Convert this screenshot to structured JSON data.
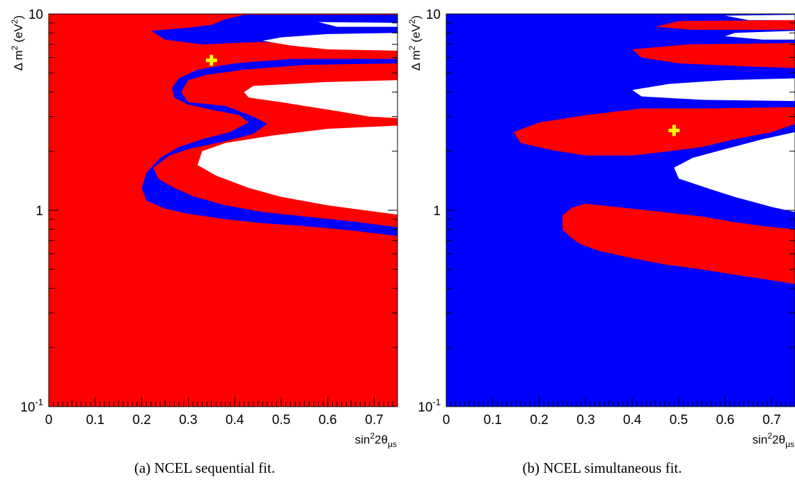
{
  "colors": {
    "red": "#ff0000",
    "blue": "#0000ff",
    "white": "#ffffff",
    "marker": "#ffff00",
    "axis": "#000000"
  },
  "chart_data": [
    {
      "type": "heatmap",
      "caption": "(a) NCEL sequential fit.",
      "xlabel_main": "sin",
      "xlabel_sup": "2",
      "xlabel_rest": "2θ",
      "xlabel_sub": "μs",
      "ylabel_main": "Δ m",
      "ylabel_sup": "2",
      "ylabel_unit_open": " (eV",
      "ylabel_unit_sup": "2",
      "ylabel_unit_close": ")",
      "xlim": [
        0,
        0.75
      ],
      "ylim": [
        0.1,
        10
      ],
      "y_scale": "log",
      "x_ticks": [
        "0",
        "0.1",
        "0.2",
        "0.3",
        "0.4",
        "0.5",
        "0.6",
        "0.7"
      ],
      "y_ticks": [
        {
          "base": "10",
          "exp": "-1",
          "value": 0.1
        },
        {
          "base": "1",
          "exp": "",
          "value": 1
        },
        {
          "base": "10",
          "exp": "",
          "value": 10
        }
      ],
      "background": "red",
      "regions": [
        {
          "color": "blue",
          "boundary": [
            [
              0.75,
              9.9
            ],
            [
              0.42,
              9.9
            ],
            [
              0.38,
              9.4
            ],
            [
              0.35,
              8.8
            ],
            [
              0.3,
              8.5
            ],
            [
              0.22,
              8.2
            ],
            [
              0.25,
              7.4
            ],
            [
              0.33,
              7.0
            ],
            [
              0.45,
              7.2
            ],
            [
              0.6,
              7.0
            ],
            [
              0.75,
              7.0
            ]
          ]
        },
        {
          "color": "blue",
          "boundary": [
            [
              0.75,
              5.6
            ],
            [
              0.55,
              5.5
            ],
            [
              0.42,
              5.2
            ],
            [
              0.34,
              4.9
            ],
            [
              0.3,
              4.6
            ],
            [
              0.285,
              4.0
            ],
            [
              0.3,
              3.55
            ],
            [
              0.38,
              3.4
            ],
            [
              0.44,
              3.0
            ],
            [
              0.47,
              2.75
            ],
            [
              0.44,
              2.45
            ],
            [
              0.38,
              2.25
            ],
            [
              0.3,
              2.05
            ],
            [
              0.26,
              1.9
            ],
            [
              0.225,
              1.65
            ],
            [
              0.235,
              1.45
            ],
            [
              0.27,
              1.3
            ],
            [
              0.31,
              1.18
            ],
            [
              0.38,
              1.06
            ],
            [
              0.46,
              0.98
            ],
            [
              0.55,
              0.93
            ],
            [
              0.65,
              0.88
            ],
            [
              0.75,
              0.82
            ],
            [
              0.75,
              0.74
            ],
            [
              0.65,
              0.79
            ],
            [
              0.55,
              0.83
            ],
            [
              0.46,
              0.86
            ],
            [
              0.38,
              0.9
            ],
            [
              0.3,
              0.96
            ],
            [
              0.25,
              1.02
            ],
            [
              0.21,
              1.12
            ],
            [
              0.2,
              1.3
            ],
            [
              0.21,
              1.55
            ],
            [
              0.24,
              1.85
            ],
            [
              0.28,
              2.1
            ],
            [
              0.33,
              2.3
            ],
            [
              0.39,
              2.5
            ],
            [
              0.43,
              2.8
            ],
            [
              0.41,
              3.05
            ],
            [
              0.35,
              3.25
            ],
            [
              0.3,
              3.45
            ],
            [
              0.27,
              3.75
            ],
            [
              0.265,
              4.2
            ],
            [
              0.28,
              4.7
            ],
            [
              0.32,
              5.2
            ],
            [
              0.4,
              5.6
            ],
            [
              0.52,
              5.9
            ],
            [
              0.75,
              5.9
            ]
          ]
        },
        {
          "color": "white",
          "boundary": [
            [
              0.75,
              9.0
            ],
            [
              0.58,
              9.1
            ],
            [
              0.62,
              8.6
            ],
            [
              0.75,
              8.6
            ]
          ]
        },
        {
          "color": "white",
          "boundary": [
            [
              0.75,
              8.0
            ],
            [
              0.6,
              7.9
            ],
            [
              0.5,
              7.6
            ],
            [
              0.46,
              7.3
            ],
            [
              0.52,
              6.9
            ],
            [
              0.6,
              6.6
            ],
            [
              0.75,
              6.5
            ]
          ]
        },
        {
          "color": "white",
          "boundary": [
            [
              0.75,
              4.6
            ],
            [
              0.6,
              4.5
            ],
            [
              0.44,
              4.3
            ],
            [
              0.42,
              4.0
            ],
            [
              0.43,
              3.75
            ],
            [
              0.5,
              3.55
            ],
            [
              0.55,
              3.4
            ],
            [
              0.62,
              3.2
            ],
            [
              0.69,
              3.0
            ],
            [
              0.75,
              2.95
            ]
          ]
        },
        {
          "color": "white",
          "boundary": [
            [
              0.75,
              2.7
            ],
            [
              0.6,
              2.6
            ],
            [
              0.48,
              2.4
            ],
            [
              0.38,
              2.2
            ],
            [
              0.33,
              2.0
            ],
            [
              0.32,
              1.7
            ],
            [
              0.36,
              1.5
            ],
            [
              0.43,
              1.3
            ],
            [
              0.5,
              1.17
            ],
            [
              0.6,
              1.06
            ],
            [
              0.75,
              0.95
            ]
          ]
        }
      ],
      "best_fit": {
        "x": 0.35,
        "y": 5.8
      }
    },
    {
      "type": "heatmap",
      "caption": "(b) NCEL simultaneous fit.",
      "xlabel_main": "sin",
      "xlabel_sup": "2",
      "xlabel_rest": "2θ",
      "xlabel_sub": "μs",
      "ylabel_main": "Δ m",
      "ylabel_sup": "2",
      "ylabel_unit_open": " (eV",
      "ylabel_unit_sup": "2",
      "ylabel_unit_close": ")",
      "xlim": [
        0,
        0.75
      ],
      "ylim": [
        0.1,
        10
      ],
      "y_scale": "log",
      "x_ticks": [
        "0",
        "0.1",
        "0.2",
        "0.3",
        "0.4",
        "0.5",
        "0.6",
        "0.7"
      ],
      "y_ticks": [
        {
          "base": "10",
          "exp": "-1",
          "value": 0.1
        },
        {
          "base": "1",
          "exp": "",
          "value": 1
        },
        {
          "base": "10",
          "exp": "",
          "value": 10
        }
      ],
      "background": "blue",
      "regions": [
        {
          "color": "red",
          "boundary": [
            [
              0.75,
              9.3
            ],
            [
              0.5,
              9.2
            ],
            [
              0.45,
              8.6
            ],
            [
              0.53,
              8.3
            ],
            [
              0.75,
              8.3
            ]
          ]
        },
        {
          "color": "red",
          "boundary": [
            [
              0.75,
              7.1
            ],
            [
              0.52,
              7.0
            ],
            [
              0.4,
              6.6
            ],
            [
              0.42,
              6.0
            ],
            [
              0.5,
              5.6
            ],
            [
              0.65,
              5.4
            ],
            [
              0.75,
              5.3
            ]
          ]
        },
        {
          "color": "red",
          "boundary": [
            [
              0.75,
              3.35
            ],
            [
              0.55,
              3.3
            ],
            [
              0.42,
              3.3
            ],
            [
              0.3,
              3.05
            ],
            [
              0.2,
              2.8
            ],
            [
              0.145,
              2.5
            ],
            [
              0.16,
              2.2
            ],
            [
              0.23,
              2.02
            ],
            [
              0.3,
              1.9
            ],
            [
              0.4,
              1.9
            ],
            [
              0.48,
              2.0
            ],
            [
              0.55,
              2.1
            ],
            [
              0.62,
              2.3
            ],
            [
              0.7,
              2.5
            ],
            [
              0.75,
              2.75
            ]
          ]
        },
        {
          "color": "red",
          "boundary": [
            [
              0.3,
              1.08
            ],
            [
              0.4,
              1.02
            ],
            [
              0.48,
              0.97
            ],
            [
              0.55,
              0.93
            ],
            [
              0.62,
              0.87
            ],
            [
              0.7,
              0.82
            ],
            [
              0.75,
              0.8
            ],
            [
              0.75,
              0.42
            ],
            [
              0.7,
              0.44
            ],
            [
              0.62,
              0.47
            ],
            [
              0.55,
              0.5
            ],
            [
              0.47,
              0.53
            ],
            [
              0.4,
              0.57
            ],
            [
              0.33,
              0.62
            ],
            [
              0.29,
              0.67
            ],
            [
              0.27,
              0.72
            ],
            [
              0.25,
              0.8
            ],
            [
              0.25,
              0.94
            ],
            [
              0.27,
              1.03
            ]
          ]
        },
        {
          "color": "white",
          "boundary": [
            [
              0.75,
              9.9
            ],
            [
              0.6,
              9.8
            ],
            [
              0.65,
              9.3
            ],
            [
              0.75,
              9.3
            ]
          ]
        },
        {
          "color": "white",
          "boundary": [
            [
              0.75,
              8.2
            ],
            [
              0.62,
              8.0
            ],
            [
              0.6,
              7.7
            ],
            [
              0.68,
              7.4
            ],
            [
              0.75,
              7.4
            ]
          ]
        },
        {
          "color": "white",
          "boundary": [
            [
              0.75,
              4.7
            ],
            [
              0.6,
              4.6
            ],
            [
              0.48,
              4.4
            ],
            [
              0.4,
              4.1
            ],
            [
              0.42,
              3.8
            ],
            [
              0.55,
              3.65
            ],
            [
              0.75,
              3.6
            ]
          ]
        },
        {
          "color": "white",
          "boundary": [
            [
              0.75,
              2.5
            ],
            [
              0.68,
              2.3
            ],
            [
              0.6,
              2.05
            ],
            [
              0.53,
              1.85
            ],
            [
              0.49,
              1.65
            ],
            [
              0.5,
              1.45
            ],
            [
              0.56,
              1.3
            ],
            [
              0.62,
              1.17
            ],
            [
              0.7,
              1.04
            ],
            [
              0.75,
              0.98
            ]
          ]
        }
      ],
      "best_fit": {
        "x": 0.49,
        "y": 2.55
      }
    }
  ]
}
